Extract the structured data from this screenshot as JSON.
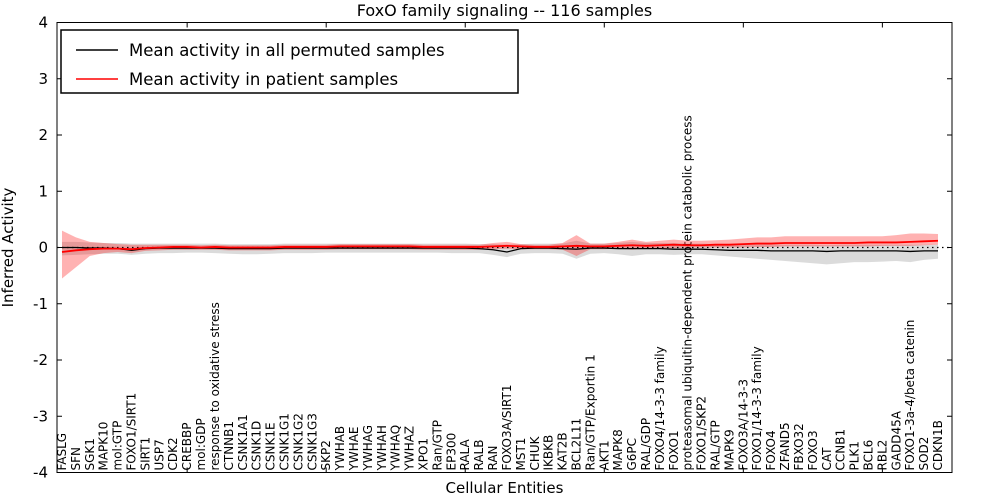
{
  "title": "FoxO family signaling -- 116 samples",
  "axes": {
    "xlabel": "Cellular Entities",
    "ylabel": "Inferred Activity",
    "ylim": [
      -4,
      4
    ],
    "yticks": [
      -4,
      -3,
      -2,
      -1,
      0,
      1,
      2,
      3,
      4
    ]
  },
  "legend": {
    "position": "upper-left",
    "entries": [
      {
        "label": "Mean activity in all permuted samples",
        "color": "#000000"
      },
      {
        "label": "Mean activity in patient samples",
        "color": "#ff0000"
      }
    ]
  },
  "chart_data": {
    "type": "line",
    "title": "FoxO family signaling -- 116 samples",
    "xlabel": "Cellular Entities",
    "ylabel": "Inferred Activity",
    "ylim": [
      -4,
      4
    ],
    "yticks": [
      -4,
      -3,
      -2,
      -1,
      0,
      1,
      2,
      3,
      4
    ],
    "grid": false,
    "zero_line_dotted": true,
    "legend_position": "upper-left",
    "categories": [
      "FASLG",
      "SFN",
      "SGK1",
      "MAPK10",
      "mol:GTP",
      "FOXO1/SIRT1",
      "SIRT1",
      "USP7",
      "CDK2",
      "CREBBP",
      "mol:GDP",
      "response to oxidative stress",
      "CTNNB1",
      "CSNK1A1",
      "CSNK1D",
      "CSNK1E",
      "CSNK1G1",
      "CSNK1G2",
      "CSNK1G3",
      "SKP2",
      "YWHAB",
      "YWHAE",
      "YWHAG",
      "YWHAH",
      "YWHAQ",
      "YWHAZ",
      "XPO1",
      "Ran/GTP",
      "EP300",
      "RALA",
      "RALB",
      "RAN",
      "FOXO3A/SIRT1",
      "MST1",
      "CHUK",
      "IKBKB",
      "KAT2B",
      "BCL2L11",
      "Ran/GTP/Exportin 1",
      "AKT1",
      "MAPK8",
      "G6PC",
      "RAL/GDP",
      "FOXO4/14-3-3 family",
      "FOXO1",
      "proteasomal ubiquitin-dependent protein catabolic process",
      "FOXO1/SKP2",
      "RAL/GTP",
      "MAPK9",
      "FOXO3A/14-3-3",
      "FOXO1/14-3-3 family",
      "FOXO4",
      "ZFAND5",
      "FBXO32",
      "FOXO3",
      "CAT",
      "CCNB1",
      "PLK1",
      "BCL6",
      "RBL2",
      "GADD45A",
      "FOXO1-3a-4/beta catenin",
      "SOD2",
      "CDKN1B"
    ],
    "series": [
      {
        "name": "Mean activity in all permuted samples",
        "color": "#000000",
        "band_color": "rgba(0,0,0,0.14)",
        "values": [
          0.0,
          0.0,
          -0.01,
          -0.01,
          -0.02,
          -0.05,
          -0.02,
          -0.01,
          -0.01,
          -0.01,
          -0.01,
          -0.01,
          -0.02,
          -0.02,
          -0.02,
          -0.02,
          -0.01,
          -0.01,
          -0.01,
          -0.01,
          -0.01,
          -0.01,
          -0.01,
          -0.01,
          -0.01,
          -0.01,
          -0.01,
          -0.01,
          -0.01,
          -0.01,
          -0.02,
          -0.04,
          -0.08,
          -0.02,
          -0.01,
          -0.01,
          -0.02,
          -0.03,
          -0.01,
          -0.01,
          -0.02,
          -0.02,
          -0.02,
          -0.02,
          -0.03,
          -0.03,
          -0.03,
          -0.04,
          -0.05,
          -0.05,
          -0.05,
          -0.06,
          -0.06,
          -0.06,
          -0.06,
          -0.07,
          -0.06,
          -0.06,
          -0.06,
          -0.06,
          -0.06,
          -0.07,
          -0.06,
          -0.06
        ],
        "band_low": [
          -0.14,
          -0.13,
          -0.12,
          -0.11,
          -0.11,
          -0.13,
          -0.11,
          -0.1,
          -0.1,
          -0.09,
          -0.09,
          -0.1,
          -0.11,
          -0.12,
          -0.12,
          -0.11,
          -0.1,
          -0.1,
          -0.1,
          -0.09,
          -0.09,
          -0.09,
          -0.09,
          -0.09,
          -0.09,
          -0.09,
          -0.09,
          -0.09,
          -0.1,
          -0.1,
          -0.1,
          -0.13,
          -0.17,
          -0.11,
          -0.1,
          -0.1,
          -0.11,
          -0.2,
          -0.11,
          -0.1,
          -0.12,
          -0.15,
          -0.12,
          -0.12,
          -0.13,
          -0.12,
          -0.12,
          -0.14,
          -0.16,
          -0.18,
          -0.2,
          -0.22,
          -0.24,
          -0.26,
          -0.28,
          -0.3,
          -0.28,
          -0.26,
          -0.26,
          -0.25,
          -0.24,
          -0.26,
          -0.22,
          -0.2
        ],
        "band_high": [
          0.1,
          0.1,
          0.09,
          0.08,
          0.08,
          0.07,
          0.07,
          0.07,
          0.07,
          0.07,
          0.07,
          0.07,
          0.06,
          0.06,
          0.06,
          0.06,
          0.07,
          0.07,
          0.07,
          0.07,
          0.07,
          0.07,
          0.07,
          0.07,
          0.07,
          0.07,
          0.07,
          0.07,
          0.07,
          0.07,
          0.06,
          0.06,
          0.05,
          0.06,
          0.07,
          0.07,
          0.07,
          0.12,
          0.07,
          0.07,
          0.08,
          0.1,
          0.08,
          0.08,
          0.08,
          0.07,
          0.07,
          0.06,
          0.06,
          0.05,
          0.05,
          0.05,
          0.05,
          0.05,
          0.05,
          0.04,
          0.05,
          0.05,
          0.05,
          0.05,
          0.05,
          0.05,
          0.05,
          0.05
        ]
      },
      {
        "name": "Mean activity in patient samples",
        "color": "#ff0000",
        "band_color": "rgba(255,0,0,0.30)",
        "values": [
          -0.08,
          -0.05,
          -0.03,
          -0.02,
          -0.02,
          -0.03,
          -0.01,
          0.0,
          0.01,
          0.01,
          0.0,
          0.01,
          0.0,
          0.0,
          0.0,
          0.0,
          0.01,
          0.01,
          0.01,
          0.01,
          0.02,
          0.02,
          0.02,
          0.02,
          0.02,
          0.02,
          0.01,
          0.01,
          0.01,
          0.01,
          0.01,
          0.02,
          0.03,
          0.02,
          0.01,
          0.01,
          0.02,
          0.03,
          0.02,
          0.02,
          0.03,
          0.04,
          0.03,
          0.04,
          0.05,
          0.04,
          0.04,
          0.05,
          0.05,
          0.06,
          0.07,
          0.07,
          0.08,
          0.08,
          0.08,
          0.08,
          0.08,
          0.08,
          0.09,
          0.09,
          0.09,
          0.1,
          0.11,
          0.12
        ],
        "band_low": [
          -0.55,
          -0.35,
          -0.15,
          -0.1,
          -0.08,
          -0.1,
          -0.06,
          -0.05,
          -0.04,
          -0.04,
          -0.04,
          -0.04,
          -0.05,
          -0.05,
          -0.05,
          -0.05,
          -0.04,
          -0.04,
          -0.04,
          -0.04,
          -0.03,
          -0.03,
          -0.03,
          -0.03,
          -0.03,
          -0.03,
          -0.04,
          -0.04,
          -0.04,
          -0.04,
          -0.04,
          -0.03,
          -0.02,
          -0.03,
          -0.03,
          -0.03,
          -0.04,
          -0.15,
          -0.03,
          -0.03,
          -0.02,
          -0.04,
          -0.02,
          -0.02,
          -0.01,
          0.0,
          0.0,
          0.0,
          0.0,
          0.0,
          0.01,
          0.01,
          0.02,
          0.02,
          0.02,
          0.02,
          0.02,
          0.02,
          0.02,
          0.03,
          0.03,
          0.03,
          0.04,
          0.05
        ],
        "band_high": [
          0.3,
          0.18,
          0.1,
          0.08,
          0.06,
          0.05,
          0.05,
          0.05,
          0.05,
          0.05,
          0.04,
          0.05,
          0.04,
          0.04,
          0.04,
          0.04,
          0.05,
          0.05,
          0.05,
          0.05,
          0.06,
          0.06,
          0.06,
          0.06,
          0.06,
          0.06,
          0.05,
          0.05,
          0.05,
          0.05,
          0.05,
          0.08,
          0.1,
          0.06,
          0.05,
          0.05,
          0.08,
          0.22,
          0.07,
          0.07,
          0.1,
          0.14,
          0.1,
          0.12,
          0.14,
          0.12,
          0.12,
          0.13,
          0.14,
          0.16,
          0.18,
          0.18,
          0.2,
          0.2,
          0.2,
          0.2,
          0.2,
          0.2,
          0.2,
          0.2,
          0.22,
          0.25,
          0.25,
          0.24
        ]
      }
    ]
  }
}
